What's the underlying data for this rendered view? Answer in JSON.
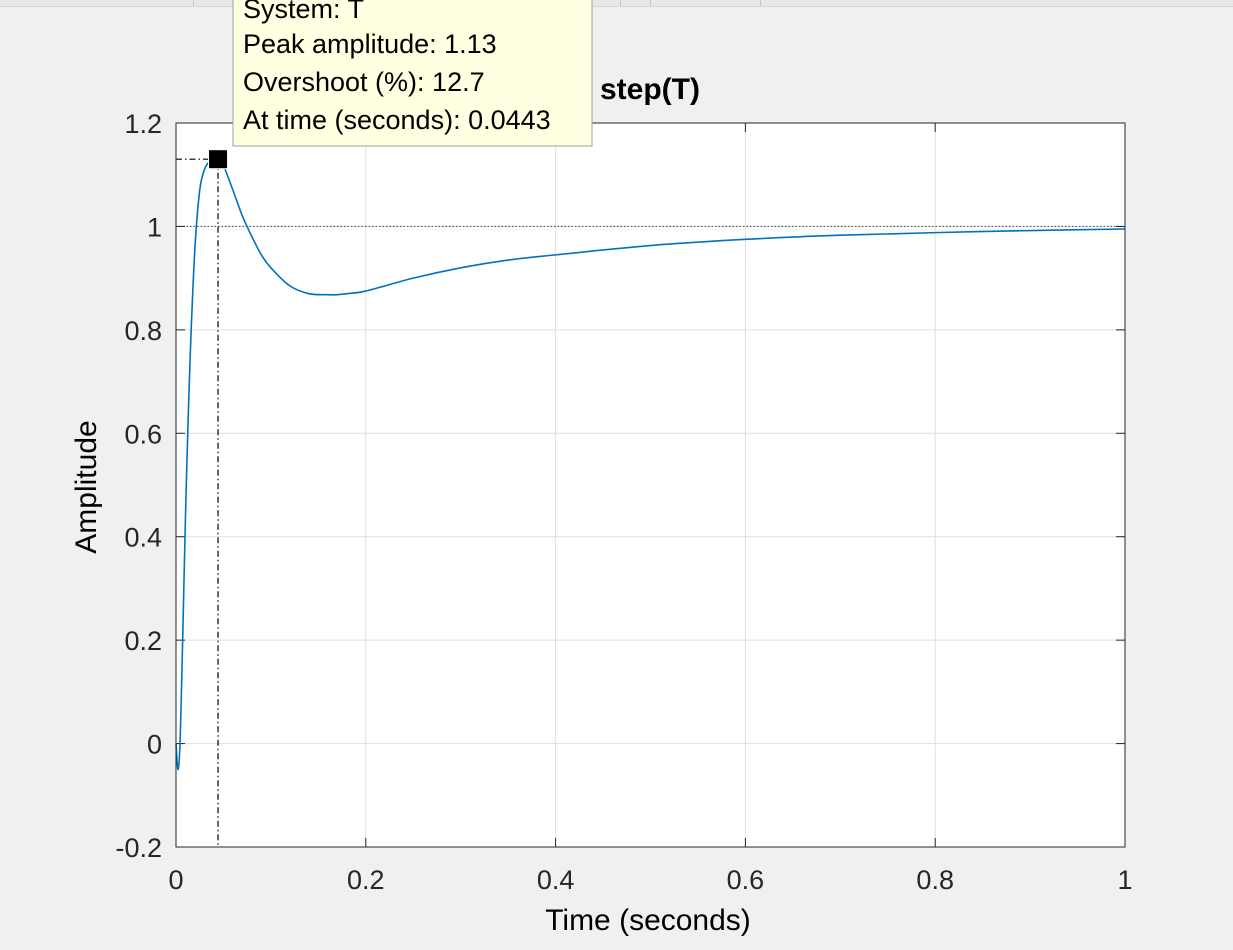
{
  "chart_data": {
    "type": "line",
    "title": "step(T)",
    "xlabel": "Time (seconds)",
    "ylabel": "Amplitude",
    "xlim": [
      0,
      1
    ],
    "ylim": [
      -0.2,
      1.2
    ],
    "xticks": [
      "0",
      "0.2",
      "0.4",
      "0.6",
      "0.8",
      "1"
    ],
    "yticks": [
      "-0.2",
      "0",
      "0.2",
      "0.4",
      "0.6",
      "0.8",
      "1",
      "1.2"
    ],
    "grid": true,
    "reference_line": {
      "y": 1,
      "style": "dotted"
    },
    "series": [
      {
        "color": "#0072bd",
        "x": [
          0,
          0.002,
          0.004,
          0.006,
          0.008,
          0.01,
          0.013,
          0.016,
          0.02,
          0.025,
          0.03,
          0.035,
          0.04,
          0.0443,
          0.05,
          0.06,
          0.07,
          0.08,
          0.09,
          0.1,
          0.12,
          0.14,
          0.16,
          0.17,
          0.18,
          0.2,
          0.25,
          0.3,
          0.35,
          0.4,
          0.5,
          0.6,
          0.7,
          0.8,
          0.9,
          1.0
        ],
        "y": [
          0,
          -0.05,
          -0.01,
          0.12,
          0.28,
          0.44,
          0.64,
          0.8,
          0.96,
          1.07,
          1.11,
          1.125,
          1.13,
          1.13,
          1.118,
          1.07,
          1.02,
          0.98,
          0.945,
          0.92,
          0.885,
          0.87,
          0.868,
          0.868,
          0.87,
          0.875,
          0.9,
          0.92,
          0.935,
          0.945,
          0.963,
          0.975,
          0.983,
          0.988,
          0.992,
          0.995
        ]
      }
    ],
    "annotations": [
      {
        "type": "peak-marker",
        "x": 0.0443,
        "y": 1.13,
        "lines": [
          "System: T",
          "Peak amplitude: 1.13",
          "Overshoot (%): 12.7",
          "At time (seconds): 0.0443"
        ]
      }
    ]
  }
}
